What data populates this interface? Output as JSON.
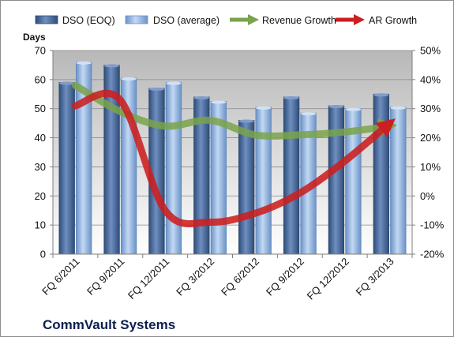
{
  "chart_data": {
    "type": "bar",
    "title": "CommVault Systems",
    "ylabel": "Days",
    "categories": [
      "FQ 6/2011",
      "FQ 9/2011",
      "FQ 12/2011",
      "FQ 3/2012",
      "FQ 6/2012",
      "FQ 9/2012",
      "FQ 12/2012",
      "FQ 3/2013"
    ],
    "ylim": [
      0,
      70
    ],
    "yticks": [
      "0",
      "10",
      "20",
      "30",
      "40",
      "50",
      "60",
      "70"
    ],
    "y2lim": [
      -20,
      50
    ],
    "y2ticks": [
      "-20%",
      "-10%",
      "0%",
      "10%",
      "20%",
      "30%",
      "40%",
      "50%"
    ],
    "legend_position": "top",
    "grid": true,
    "series": [
      {
        "name": "DSO (EOQ)",
        "type": "bar",
        "axis": "left",
        "color": "#4a6b9c",
        "values": [
          59,
          65,
          57,
          54,
          46,
          54,
          51,
          55
        ]
      },
      {
        "name": "DSO (average)",
        "type": "bar",
        "axis": "left",
        "color": "#8eb2e0",
        "values": [
          66,
          60.5,
          59,
          52.5,
          50.5,
          48.5,
          50,
          50.5
        ]
      },
      {
        "name": "Revenue Growth",
        "type": "line",
        "axis": "right",
        "color": "#7aa34a",
        "values": [
          38,
          29,
          24,
          26,
          21,
          21,
          22,
          24
        ]
      },
      {
        "name": "AR Growth",
        "type": "line",
        "axis": "right",
        "color": "#cc1f1f",
        "values": [
          31,
          33,
          -5,
          -9,
          -6,
          1,
          12,
          25
        ]
      }
    ]
  }
}
